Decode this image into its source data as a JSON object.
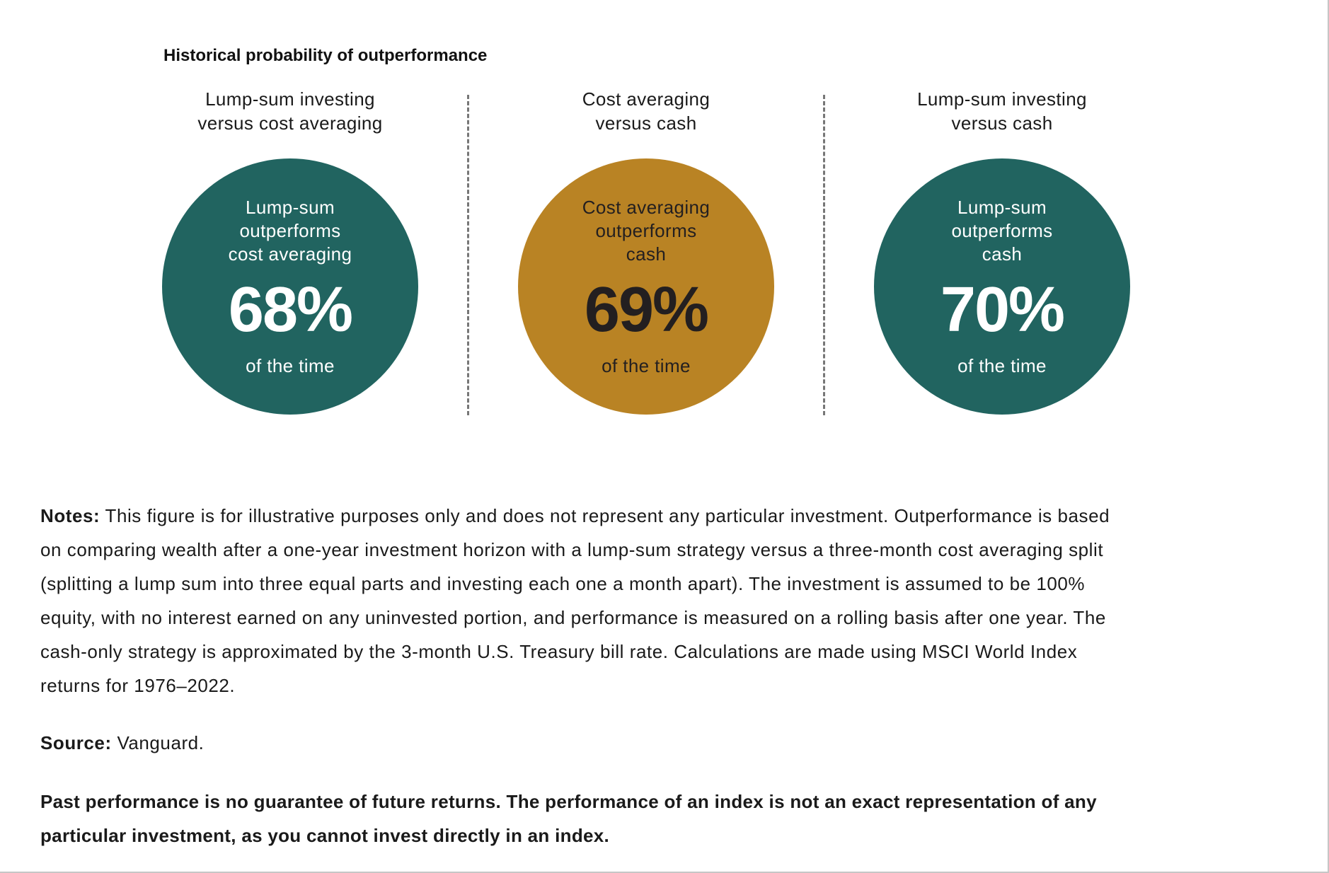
{
  "chart_data": {
    "type": "table",
    "title": "Historical probability of outperformance",
    "unit": "% of the time",
    "panels": [
      {
        "header": [
          "Lump-sum investing",
          "versus cost averaging"
        ],
        "label": [
          "Lump-sum",
          "outperforms",
          "cost averaging"
        ],
        "value": 68,
        "value_label": "68%",
        "footer": "of the time",
        "fill_color": "#216460",
        "text_color": "#ffffff"
      },
      {
        "header": [
          "Cost averaging",
          "versus cash"
        ],
        "label": [
          "Cost averaging",
          "outperforms",
          "cash"
        ],
        "value": 69,
        "value_label": "69%",
        "footer": "of the time",
        "fill_color": "#b98324",
        "text_color": "#231f20"
      },
      {
        "header": [
          "Lump-sum investing",
          "versus cash"
        ],
        "label": [
          "Lump-sum",
          "outperforms",
          "cash"
        ],
        "value": 70,
        "value_label": "70%",
        "footer": "of the time",
        "fill_color": "#216460",
        "text_color": "#ffffff"
      }
    ]
  },
  "notes": {
    "label": "Notes:",
    "lines": [
      "This figure is for illustrative purposes only and does not represent any particular investment. Outperformance is based",
      "on comparing wealth after a one-year investment horizon with a lump-sum strategy versus a three-month cost averaging split",
      "(splitting a lump sum into three equal parts and investing each one a month apart). The investment is assumed to be 100%",
      "equity, with no interest earned on any uninvested portion, and performance is measured on a rolling basis after one year. The",
      "cash-only strategy is approximated by the 3-month U.S. Treasury bill rate. Calculations are made using MSCI World Index",
      "returns for 1976–2022."
    ]
  },
  "source": {
    "label": "Source:",
    "text": "Vanguard."
  },
  "disclaimer": {
    "lines": [
      "Past performance is no guarantee of future returns. The performance of an index is not an exact representation of any",
      "particular investment, as you cannot invest directly in an index."
    ]
  }
}
